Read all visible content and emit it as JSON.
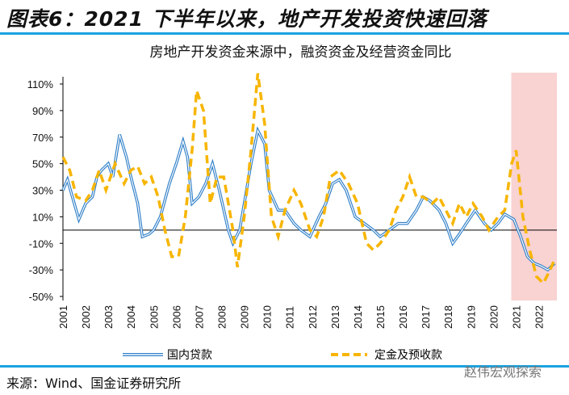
{
  "header": {
    "title": "图表6：2021 下半年以来，地产开发投资快速回落"
  },
  "footer": {
    "source": "来源：Wind、国金证券研究所",
    "watermark": "赵伟宏观探索"
  },
  "colors": {
    "blue": "#2f7fc8",
    "yellow": "#f7b500",
    "shade": "#f9d2d2",
    "accent": "#19a3e0"
  },
  "chart_data": {
    "type": "line",
    "title": "房地产开发资金来源中，融资资金及经营资金同比",
    "xlabel": "",
    "ylabel": "",
    "ylim": [
      -50,
      120
    ],
    "yticks": [
      "110%",
      "90%",
      "70%",
      "50%",
      "30%",
      "10%",
      "-10%",
      "-30%",
      "-50%"
    ],
    "ytick_values": [
      110,
      90,
      70,
      50,
      30,
      10,
      -10,
      -30,
      -50
    ],
    "xticks": [
      "2001",
      "2002",
      "2003",
      "2004",
      "2005",
      "2006",
      "2007",
      "2008",
      "2009",
      "2010",
      "2011",
      "2012",
      "2013",
      "2014",
      "2015",
      "2016",
      "2017",
      "2018",
      "2019",
      "2020",
      "2021",
      "2022"
    ],
    "xlim": [
      2001,
      2022.8
    ],
    "shaded_region": [
      2021,
      2022.8
    ],
    "legend_position": "bottom",
    "series": [
      {
        "name": "国内贷款",
        "style": "double-line",
        "x": [
          2001.0,
          2001.2,
          2001.5,
          2001.7,
          2002.0,
          2002.3,
          2002.5,
          2002.7,
          2003.0,
          2003.2,
          2003.5,
          2003.8,
          2004.0,
          2004.3,
          2004.5,
          2004.8,
          2005.0,
          2005.3,
          2005.7,
          2006.0,
          2006.3,
          2006.5,
          2006.7,
          2007.0,
          2007.3,
          2007.6,
          2007.9,
          2008.3,
          2008.5,
          2008.8,
          2009.0,
          2009.3,
          2009.6,
          2009.9,
          2010.1,
          2010.5,
          2010.8,
          2011.2,
          2011.5,
          2011.9,
          2012.3,
          2012.6,
          2012.9,
          2013.2,
          2013.5,
          2013.9,
          2014.3,
          2014.7,
          2015.0,
          2015.4,
          2015.8,
          2016.2,
          2016.6,
          2016.9,
          2017.2,
          2017.6,
          2017.9,
          2018.2,
          2018.5,
          2018.8,
          2019.2,
          2019.6,
          2019.9,
          2020.2,
          2020.5,
          2020.9,
          2021.2,
          2021.5,
          2021.8,
          2022.1,
          2022.4,
          2022.7
        ],
        "values": [
          30,
          38,
          20,
          8,
          20,
          25,
          40,
          45,
          50,
          40,
          72,
          55,
          40,
          20,
          -5,
          -3,
          0,
          10,
          35,
          50,
          67,
          55,
          20,
          25,
          35,
          50,
          30,
          0,
          -10,
          0,
          20,
          50,
          75,
          65,
          30,
          15,
          15,
          5,
          0,
          -5,
          10,
          20,
          35,
          38,
          30,
          10,
          5,
          0,
          -5,
          0,
          5,
          5,
          15,
          25,
          22,
          15,
          5,
          -10,
          -3,
          5,
          15,
          5,
          0,
          5,
          12,
          8,
          -5,
          -20,
          -25,
          -27,
          -30,
          -25
        ]
      },
      {
        "name": "定金及预收款",
        "style": "dashed",
        "x": [
          2001.0,
          2001.3,
          2001.6,
          2002.0,
          2002.3,
          2002.6,
          2002.9,
          2003.3,
          2003.7,
          2004.0,
          2004.3,
          2004.6,
          2004.9,
          2005.2,
          2005.5,
          2005.8,
          2006.1,
          2006.4,
          2006.7,
          2006.9,
          2007.2,
          2007.5,
          2007.8,
          2008.1,
          2008.5,
          2008.7,
          2009.0,
          2009.3,
          2009.6,
          2009.9,
          2010.2,
          2010.5,
          2010.8,
          2011.2,
          2011.5,
          2011.9,
          2012.2,
          2012.5,
          2012.8,
          2013.2,
          2013.6,
          2014.0,
          2014.4,
          2014.7,
          2015.0,
          2015.4,
          2015.7,
          2016.0,
          2016.3,
          2016.6,
          2016.9,
          2017.3,
          2017.6,
          2017.9,
          2018.2,
          2018.5,
          2018.8,
          2019.1,
          2019.5,
          2019.8,
          2020.2,
          2020.5,
          2020.8,
          2021.0,
          2021.3,
          2021.6,
          2021.9,
          2022.2,
          2022.5,
          2022.7
        ],
        "values": [
          55,
          45,
          25,
          22,
          30,
          45,
          30,
          50,
          35,
          45,
          48,
          35,
          40,
          25,
          0,
          -20,
          -20,
          10,
          60,
          105,
          90,
          20,
          40,
          40,
          0,
          -28,
          10,
          60,
          118,
          80,
          10,
          -5,
          15,
          30,
          20,
          0,
          -5,
          10,
          40,
          45,
          35,
          20,
          -10,
          -15,
          -10,
          0,
          15,
          25,
          40,
          25,
          25,
          20,
          25,
          15,
          5,
          20,
          10,
          20,
          10,
          0,
          10,
          15,
          50,
          60,
          10,
          -15,
          -35,
          -40,
          -30,
          -22
        ]
      }
    ]
  }
}
